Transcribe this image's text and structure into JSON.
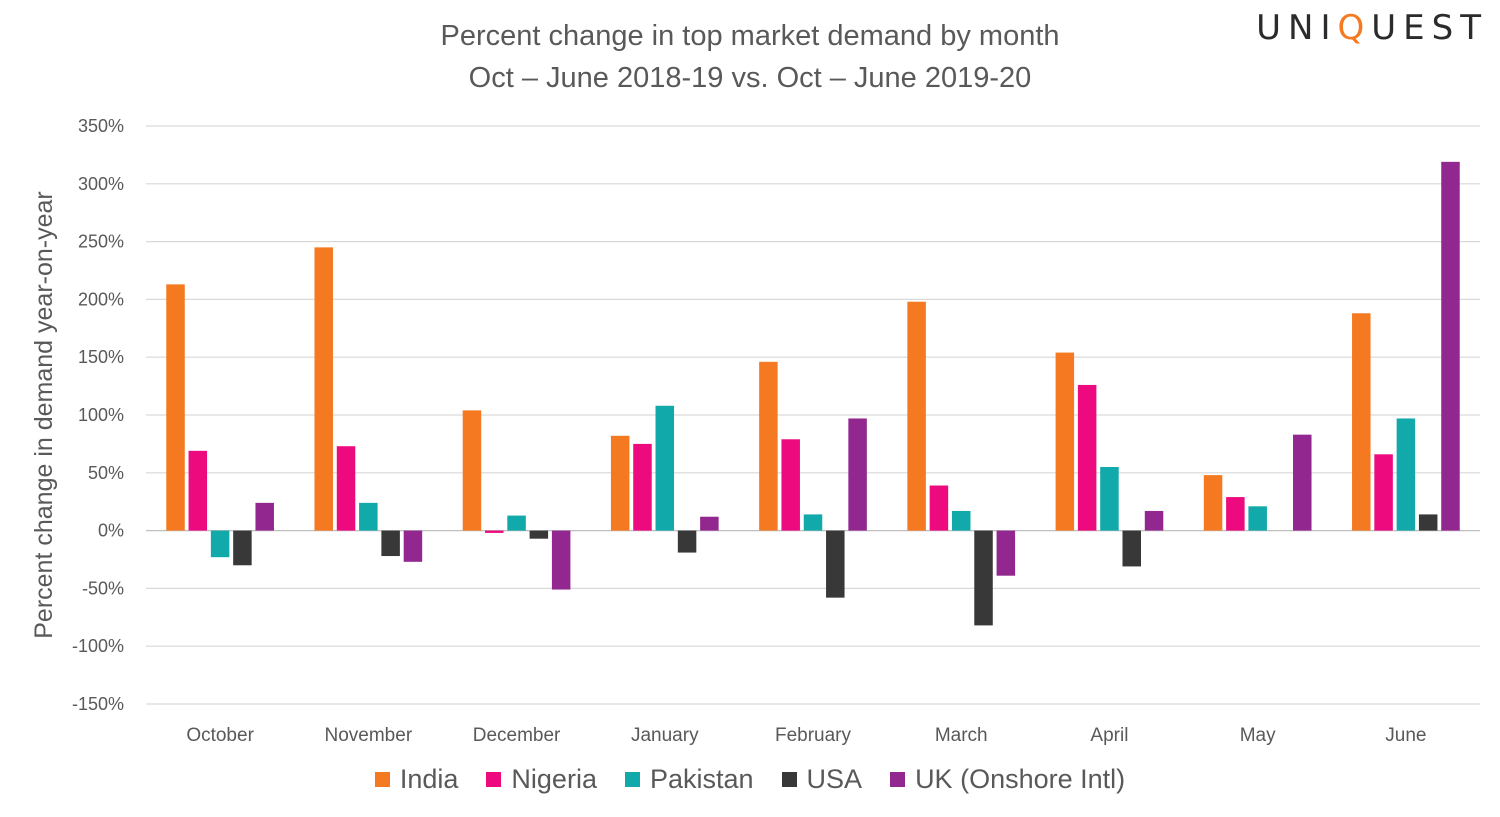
{
  "logo": {
    "text_before": "UNI",
    "text_q": "Q",
    "text_after": "UEST",
    "accent_color": "#f47920"
  },
  "chart_data": {
    "type": "bar",
    "title": "Percent change in top market demand by month",
    "subtitle": "Oct – June 2018-19 vs. Oct – June 2019-20",
    "xlabel": "",
    "ylabel": "Percent change in demand year-on-year",
    "ylim": [
      -150,
      350
    ],
    "yticks": [
      350,
      300,
      250,
      200,
      150,
      100,
      50,
      0,
      -50,
      -100,
      -150
    ],
    "ytick_labels": [
      "350%",
      "300%",
      "250%",
      "200%",
      "150%",
      "100%",
      "50%",
      "0%",
      "-50%",
      "-100%",
      "-150%"
    ],
    "grid": true,
    "legend_position": "bottom",
    "categories": [
      "October",
      "November",
      "December",
      "January",
      "February",
      "March",
      "April",
      "May",
      "June"
    ],
    "series": [
      {
        "name": "India",
        "color": "#f47920",
        "values": [
          213,
          245,
          104,
          82,
          146,
          198,
          154,
          48,
          188
        ]
      },
      {
        "name": "Nigeria",
        "color": "#ec0a7e",
        "values": [
          69,
          73,
          -2,
          75,
          79,
          39,
          126,
          29,
          66
        ]
      },
      {
        "name": "Pakistan",
        "color": "#11a9a9",
        "values": [
          -23,
          24,
          13,
          108,
          14,
          17,
          55,
          21,
          97
        ]
      },
      {
        "name": "USA",
        "color": "#383838",
        "values": [
          -30,
          -22,
          -7,
          -19,
          -58,
          -82,
          -31,
          0,
          14
        ]
      },
      {
        "name": "UK (Onshore Intl)",
        "color": "#92278f",
        "values": [
          24,
          -27,
          -51,
          12,
          97,
          -39,
          17,
          83,
          319
        ]
      }
    ]
  }
}
